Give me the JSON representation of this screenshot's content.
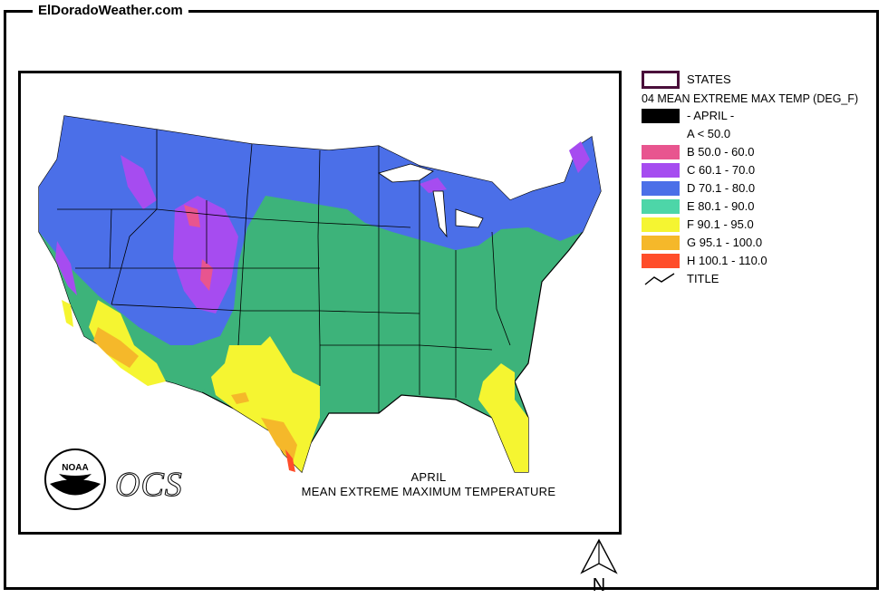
{
  "site": {
    "title": "ElDoradoWeather.com"
  },
  "map": {
    "caption_line1": "APRIL",
    "caption_line2": "MEAN EXTREME MAXIMUM TEMPERATURE",
    "logo_text": "NOAA",
    "ocs_text": "OCS"
  },
  "legend": {
    "states_label": "STATES",
    "layer_title": "04 MEAN EXTREME MAX TEMP (DEG_F)",
    "month_label": "- APRIL -",
    "title_label": "TITLE",
    "classes": [
      {
        "label": "A < 50.0",
        "color": ""
      },
      {
        "label": "B 50.0 - 60.0",
        "color": "#e8558f"
      },
      {
        "label": "C 60.1 - 70.0",
        "color": "#a64cf0"
      },
      {
        "label": "D 70.1 - 80.0",
        "color": "#4b6fe8"
      },
      {
        "label": "E 80.1 - 90.0",
        "color": "#4dd6a8"
      },
      {
        "label": "F 90.1 - 95.0",
        "color": "#f5f531"
      },
      {
        "label": "G 95.1 - 100.0",
        "color": "#f5b82a"
      },
      {
        "label": "H 100.1 - 110.0",
        "color": "#ff4d2a"
      }
    ],
    "map_colors": {
      "states_outline": "#4a0f3a",
      "east_green": "#3db37a",
      "month_swatch": "#000000"
    }
  },
  "north_arrow": {
    "label": "N"
  }
}
